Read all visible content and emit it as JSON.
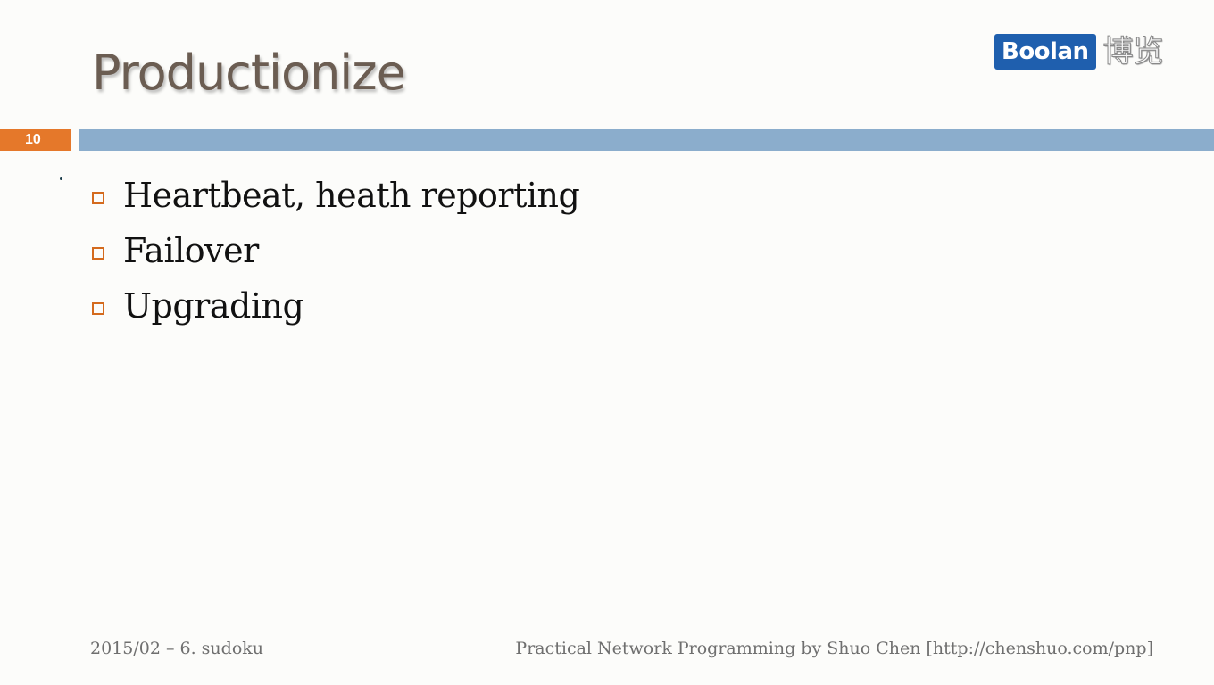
{
  "slide": {
    "title": "Productionize",
    "page_number": "10",
    "logo": {
      "text": "Boolan",
      "chinese": "博览"
    },
    "bullets": [
      "Heartbeat, heath reporting",
      "Failover",
      "Upgrading"
    ],
    "footer": {
      "left": "2015/02 – 6. sudoku",
      "right": "Practical Network Programming by Shuo Chen [http://chenshuo.com/pnp]"
    }
  },
  "colors": {
    "accent_orange": "#e5782a",
    "title_bar_blue": "#8badcc",
    "logo_blue": "#1f5fae",
    "title_text": "#6b5d52"
  }
}
